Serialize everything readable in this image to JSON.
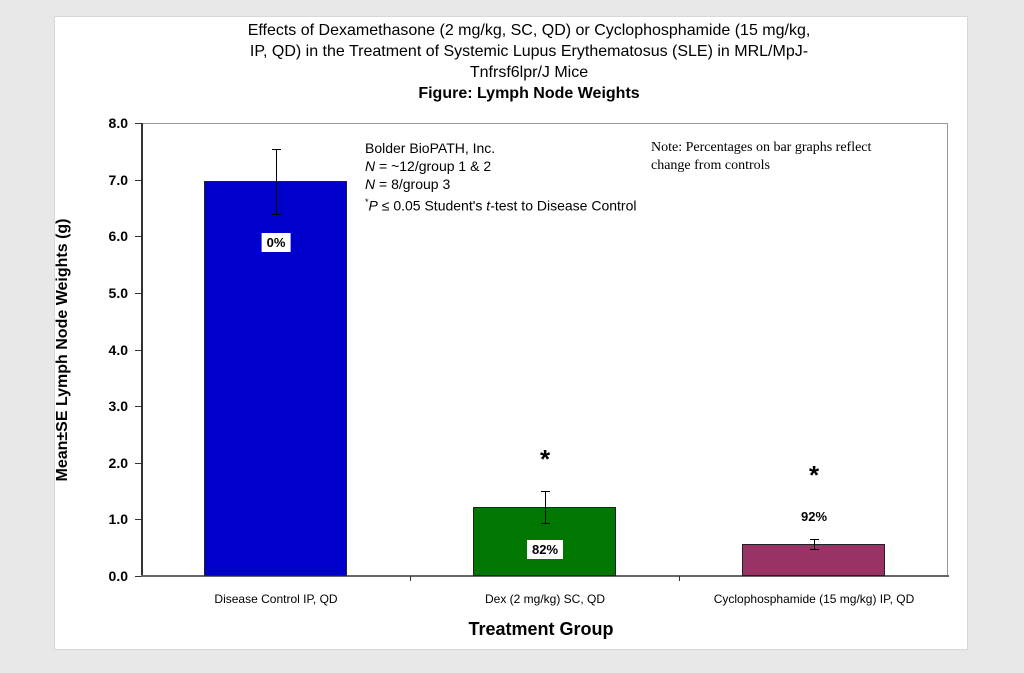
{
  "chart_data": {
    "type": "bar",
    "title": "Effects of Dexamethasone (2 mg/kg, SC, QD) or Cyclophosphamide (15 mg/kg, IP, QD) in the Treatment of Systemic Lupus Erythematosus (SLE) in MRL/MpJ-Tnfrsf6lpr/J Mice",
    "title_lines": [
      "Effects of Dexamethasone (2 mg/kg, SC, QD) or Cyclophosphamide (15 mg/kg,",
      "IP, QD) in the Treatment of Systemic Lupus Erythematosus (SLE) in MRL/MpJ-",
      "Tnfrsf6lpr/J Mice"
    ],
    "subtitle": "Figure: Lymph Node Weights",
    "xlabel": "Treatment Group",
    "ylabel": "Mean±SE Lymph Node Weights (g)",
    "ylim": [
      0,
      8
    ],
    "yticks": [
      "0.0",
      "1.0",
      "2.0",
      "3.0",
      "4.0",
      "5.0",
      "6.0",
      "7.0",
      "8.0"
    ],
    "grid": false,
    "legend": null,
    "categories": [
      "Disease Control IP, QD",
      "Dex (2 mg/kg) SC, QD",
      "Cyclophosphamide (15 mg/kg) IP, QD"
    ],
    "values": [
      6.97,
      1.22,
      0.57
    ],
    "errors": [
      0.57,
      0.28,
      0.09
    ],
    "colors": [
      "#0000cc",
      "#007700",
      "#993366"
    ],
    "bar_labels": [
      "0%",
      "82%",
      "92%"
    ],
    "significance": [
      "",
      "*",
      "*"
    ],
    "annotations": {
      "info_lines": [
        "Bolder BioPATH, Inc.",
        "N = ~12/group 1 & 2",
        "N = 8/group 3",
        "*P ≤ 0.05 Student's t-test to Disease Control"
      ],
      "note": "Note: Percentages on bar graphs reflect change from controls"
    }
  },
  "ui": {
    "title_line1": "Effects of Dexamethasone (2 mg/kg, SC, QD) or Cyclophosphamide (15 mg/kg,",
    "title_line2": "IP, QD) in the Treatment of Systemic Lupus Erythematosus (SLE) in MRL/MpJ-",
    "title_line3": "Tnfrsf6lpr/J Mice",
    "subtitle": "Figure: Lymph Node Weights",
    "ylabel": "Mean±SE Lymph Node Weights (g)",
    "xlabel": "Treatment Group",
    "info": {
      "company": "Bolder BioPATH, Inc.",
      "n1_var": "N",
      "n1_rest": " = ~12/group 1 & 2",
      "n2_var": "N",
      "n2_rest": " = 8/group 3",
      "p_star": "*",
      "p_var": "P",
      "p_mid": " ≤ 0.05 Student's ",
      "p_t": "t",
      "p_end": "-test to Disease Control"
    },
    "note_line1": "Note: Percentages on bar graphs reflect",
    "note_line2": "change from controls",
    "star": "*"
  }
}
